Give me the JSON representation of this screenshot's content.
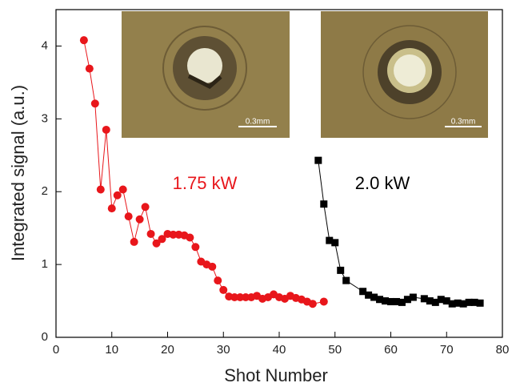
{
  "chart_data": {
    "type": "line",
    "x_label": "Shot Number",
    "y_label": "Integrated signal (a.u.)",
    "xlim": [
      0,
      80
    ],
    "ylim": [
      0,
      4.5
    ],
    "xticks": [
      0,
      10,
      20,
      30,
      40,
      50,
      60,
      70,
      80
    ],
    "yticks": [
      0,
      1,
      2,
      3,
      4
    ],
    "series": [
      {
        "name": "1.75 kW",
        "color": "#e8161b",
        "marker": "circle",
        "x": [
          5,
          6,
          7,
          8,
          9,
          10,
          11,
          12,
          13,
          14,
          15,
          16,
          17,
          18,
          19,
          20,
          21,
          22,
          23,
          24,
          25,
          26,
          27,
          28,
          29,
          30,
          31,
          32,
          33,
          34,
          35,
          36,
          37,
          38,
          39,
          40,
          41,
          42,
          43,
          44,
          45,
          46,
          48
        ],
        "values": [
          4.08,
          3.69,
          3.21,
          2.03,
          2.85,
          1.77,
          1.95,
          2.03,
          1.66,
          1.31,
          1.62,
          1.79,
          1.42,
          1.29,
          1.35,
          1.42,
          1.41,
          1.41,
          1.4,
          1.37,
          1.24,
          1.04,
          1.0,
          0.97,
          0.78,
          0.65,
          0.56,
          0.55,
          0.55,
          0.55,
          0.55,
          0.57,
          0.53,
          0.55,
          0.59,
          0.55,
          0.53,
          0.57,
          0.54,
          0.52,
          0.49,
          0.46,
          0.49
        ]
      },
      {
        "name": "2.0 kW",
        "color": "#000000",
        "marker": "square",
        "x": [
          47,
          48,
          49,
          50,
          51,
          52,
          55,
          56,
          57,
          58,
          59,
          60,
          61,
          62,
          63,
          64,
          66,
          67,
          68,
          69,
          70,
          71,
          72,
          73,
          74,
          75,
          76
        ],
        "values": [
          2.43,
          1.83,
          1.33,
          1.3,
          0.92,
          0.78,
          0.63,
          0.58,
          0.55,
          0.52,
          0.5,
          0.49,
          0.49,
          0.48,
          0.52,
          0.55,
          0.53,
          0.5,
          0.48,
          0.52,
          0.5,
          0.46,
          0.47,
          0.46,
          0.48,
          0.48,
          0.47
        ]
      }
    ],
    "insets": [
      {
        "scale_label": "0.3mm"
      },
      {
        "scale_label": "0.3mm"
      }
    ]
  }
}
